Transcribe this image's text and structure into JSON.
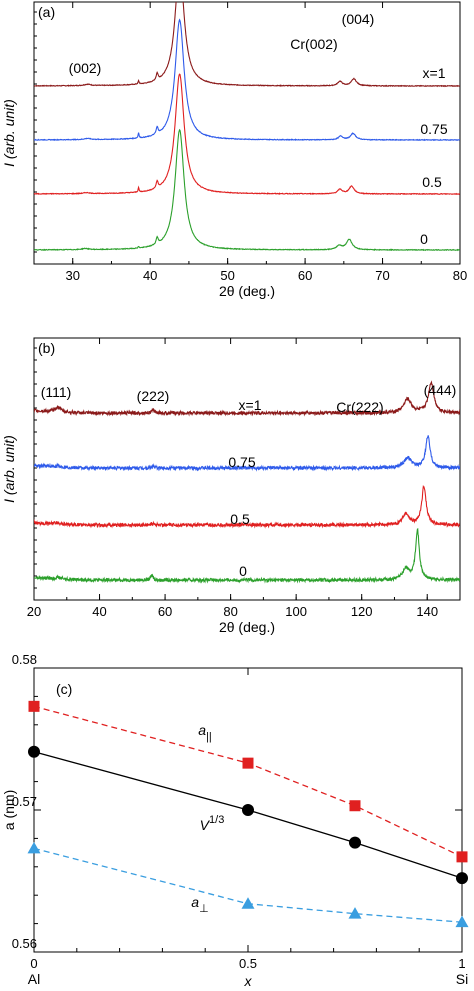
{
  "chart_data": [
    {
      "panel": "(a)",
      "type": "line",
      "xlabel": "2θ (deg.)",
      "ylabel": "I (arb. unit)",
      "xlim": [
        25,
        80
      ],
      "xticks": [
        30,
        40,
        50,
        60,
        70,
        80
      ],
      "y_ticks_labeled": false,
      "annotations": [
        {
          "text": "(002)",
          "x": 32
        },
        {
          "text": "Cr(002)",
          "x": 64.3
        },
        {
          "text": "(004)",
          "x": 66.3
        }
      ],
      "series": [
        {
          "name": "x=1",
          "color": "#8b1a1a",
          "offset": 3,
          "peaks": [
            [
              31.9,
              0.07,
              0.5
            ],
            [
              38.5,
              0.16,
              0.08
            ],
            [
              40.9,
              0.35,
              0.15
            ],
            [
              43.8,
              6.0,
              0.7
            ],
            [
              64.5,
              0.22,
              0.35
            ],
            [
              66.3,
              0.35,
              0.4
            ]
          ]
        },
        {
          "name": "0.75",
          "color": "#2f5bea",
          "offset": 2,
          "peaks": [
            [
              31.9,
              0.06,
              0.5
            ],
            [
              38.5,
              0.28,
              0.07
            ],
            [
              40.9,
              0.35,
              0.15
            ],
            [
              43.8,
              6.0,
              0.7
            ],
            [
              64.6,
              0.18,
              0.35
            ],
            [
              66.2,
              0.32,
              0.4
            ]
          ]
        },
        {
          "name": "0.5",
          "color": "#e02020",
          "offset": 1,
          "peaks": [
            [
              31.8,
              0.05,
              0.5
            ],
            [
              38.5,
              0.23,
              0.07
            ],
            [
              40.9,
              0.35,
              0.15
            ],
            [
              43.8,
              6.0,
              0.7
            ],
            [
              64.5,
              0.22,
              0.35
            ],
            [
              66.0,
              0.38,
              0.4
            ]
          ]
        },
        {
          "name": "0",
          "color": "#2ca02c",
          "offset": 0,
          "peaks": [
            [
              31.6,
              0.06,
              0.5
            ],
            [
              38.5,
              0.08,
              0.07
            ],
            [
              40.9,
              0.35,
              0.15
            ],
            [
              43.8,
              6.0,
              0.7
            ],
            [
              64.4,
              0.2,
              0.4
            ],
            [
              65.7,
              0.52,
              0.45
            ]
          ]
        }
      ]
    },
    {
      "panel": "(b)",
      "type": "line",
      "xlabel": "2θ (deg.)",
      "ylabel": "I (arb. unit)",
      "xlim": [
        20,
        150
      ],
      "xticks": [
        20,
        40,
        60,
        80,
        100,
        120,
        140
      ],
      "y_ticks_labeled": false,
      "annotations": [
        {
          "text": "(111)",
          "x": 25.5
        },
        {
          "text": "(222)",
          "x": 56
        },
        {
          "text": "Cr(222)",
          "x": 133
        },
        {
          "text": "(444)",
          "x": 141
        }
      ],
      "series": [
        {
          "name": "x=1",
          "color": "#8b1a1a",
          "offset": 3,
          "peaks": [
            [
              27.3,
              0.09,
              1.0
            ],
            [
              56.4,
              0.05,
              0.6
            ],
            [
              134,
              0.25,
              1.4
            ],
            [
              141.2,
              0.55,
              1.0
            ]
          ]
        },
        {
          "name": "0.75",
          "color": "#2f5bea",
          "offset": 2,
          "peaks": [
            [
              27.3,
              0.02,
              1.0
            ],
            [
              56.4,
              0.03,
              0.6
            ],
            [
              134,
              0.18,
              1.4
            ],
            [
              140.2,
              0.58,
              0.8
            ]
          ]
        },
        {
          "name": "0.5",
          "color": "#e02020",
          "offset": 1,
          "peaks": [
            [
              27.3,
              0.02,
              1.0
            ],
            [
              56.4,
              0.03,
              0.6
            ],
            [
              133.5,
              0.2,
              1.2
            ],
            [
              139,
              0.7,
              0.8
            ]
          ]
        },
        {
          "name": "0",
          "color": "#2ca02c",
          "offset": 0,
          "peaks": [
            [
              27.3,
              0.03,
              1.0
            ],
            [
              56,
              0.08,
              0.5
            ],
            [
              133.5,
              0.2,
              1.2
            ],
            [
              137,
              0.9,
              0.7
            ]
          ]
        }
      ]
    },
    {
      "panel": "(c)",
      "type": "line",
      "xlabel": "x",
      "ylabel": "a (nm)",
      "xlim": [
        0,
        1
      ],
      "ylim": [
        0.56,
        0.58
      ],
      "xticks": [
        0,
        0.5,
        1
      ],
      "xticklabels": [
        "0",
        "0.5",
        "1"
      ],
      "x_end_labels": [
        "Al",
        "Si"
      ],
      "yticks": [
        0.56,
        0.57,
        0.58
      ],
      "yticklabels": [
        "0.56",
        "0.57",
        "0.58"
      ],
      "series": [
        {
          "name": "a∥",
          "label": "a",
          "label_sub": "||",
          "color": "#e02020",
          "marker": "square",
          "dash": true,
          "x": [
            0,
            0.5,
            0.75,
            1
          ],
          "y": [
            0.5773,
            0.5733,
            0.5703,
            0.5667
          ]
        },
        {
          "name": "V1/3",
          "label": "V",
          "label_sup": "1/3",
          "color": "#000000",
          "marker": "circle",
          "dash": false,
          "x": [
            0,
            0.5,
            0.75,
            1
          ],
          "y": [
            0.5741,
            0.57,
            0.5677,
            0.5652
          ]
        },
        {
          "name": "a⊥",
          "label": "a",
          "label_sub": "⊥",
          "color": "#3a9ee0",
          "marker": "triangle",
          "dash": true,
          "x": [
            0,
            0.5,
            0.75,
            1
          ],
          "y": [
            0.5673,
            0.5634,
            0.5627,
            0.5621
          ]
        }
      ]
    }
  ]
}
